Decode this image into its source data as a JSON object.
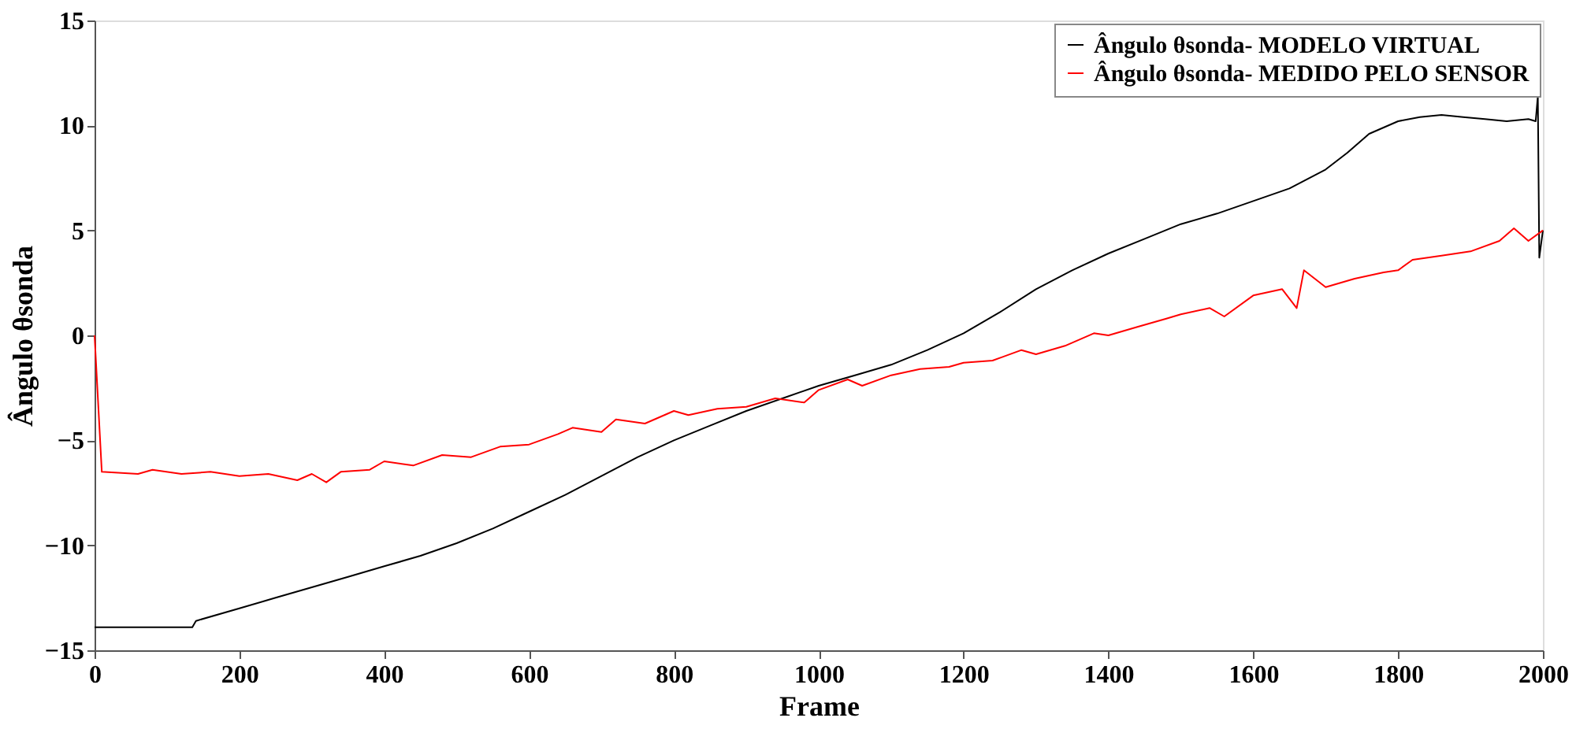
{
  "chart_data": {
    "type": "line",
    "xlabel": "Frame",
    "ylabel": "Ângulo θsonda",
    "xlim": [
      0,
      2000
    ],
    "ylim": [
      -15,
      15
    ],
    "xticks": [
      0,
      200,
      400,
      600,
      800,
      1000,
      1200,
      1400,
      1600,
      1800,
      2000
    ],
    "yticks": [
      -15,
      -10,
      -5,
      0,
      5,
      10,
      15
    ],
    "grid": false,
    "legend": "top right",
    "line_style": "solid",
    "marker": "none",
    "series": [
      {
        "name": "Ângulo θsonda- MODELO VIRTUAL",
        "color": "#000000",
        "x": [
          0,
          50,
          100,
          135,
          140,
          200,
          250,
          300,
          350,
          400,
          450,
          500,
          550,
          600,
          650,
          700,
          750,
          800,
          850,
          900,
          950,
          1000,
          1050,
          1100,
          1150,
          1200,
          1250,
          1300,
          1350,
          1400,
          1450,
          1500,
          1550,
          1600,
          1650,
          1700,
          1730,
          1760,
          1800,
          1830,
          1860,
          1890,
          1920,
          1950,
          1980,
          1990,
          1993,
          1995,
          2000
        ],
        "values": [
          -13.9,
          -13.9,
          -13.9,
          -13.9,
          -13.6,
          -13.0,
          -12.5,
          -12.0,
          -11.5,
          -11.0,
          -10.5,
          -9.9,
          -9.2,
          -8.4,
          -7.6,
          -6.7,
          -5.8,
          -5.0,
          -4.3,
          -3.6,
          -3.0,
          -2.4,
          -1.9,
          -1.4,
          -0.7,
          0.1,
          1.1,
          2.2,
          3.1,
          3.9,
          4.6,
          5.3,
          5.8,
          6.4,
          7.0,
          7.9,
          8.7,
          9.6,
          10.2,
          10.4,
          10.5,
          10.4,
          10.3,
          10.2,
          10.3,
          10.2,
          11.4,
          3.7,
          5.0
        ]
      },
      {
        "name": "Ângulo θsonda- MEDIDO PELO SENSOR",
        "color": "#ff0000",
        "x": [
          0,
          10,
          60,
          80,
          120,
          160,
          200,
          240,
          280,
          300,
          320,
          340,
          380,
          400,
          440,
          480,
          520,
          560,
          600,
          640,
          660,
          700,
          720,
          760,
          800,
          820,
          860,
          900,
          940,
          980,
          1000,
          1040,
          1060,
          1100,
          1140,
          1180,
          1200,
          1240,
          1280,
          1300,
          1340,
          1380,
          1400,
          1440,
          1480,
          1500,
          1540,
          1560,
          1600,
          1640,
          1660,
          1670,
          1700,
          1740,
          1780,
          1800,
          1820,
          1860,
          1900,
          1940,
          1960,
          1980,
          2000
        ],
        "values": [
          0,
          -6.5,
          -6.6,
          -6.4,
          -6.6,
          -6.5,
          -6.7,
          -6.6,
          -6.9,
          -6.6,
          -7.0,
          -6.5,
          -6.4,
          -6.0,
          -6.2,
          -5.7,
          -5.8,
          -5.3,
          -5.2,
          -4.7,
          -4.4,
          -4.6,
          -4.0,
          -4.2,
          -3.6,
          -3.8,
          -3.5,
          -3.4,
          -3.0,
          -3.2,
          -2.6,
          -2.1,
          -2.4,
          -1.9,
          -1.6,
          -1.5,
          -1.3,
          -1.2,
          -0.7,
          -0.9,
          -0.5,
          0.1,
          0.0,
          0.4,
          0.8,
          1.0,
          1.3,
          0.9,
          1.9,
          2.2,
          1.3,
          3.1,
          2.3,
          2.7,
          3.0,
          3.1,
          3.6,
          3.8,
          4.0,
          4.5,
          5.1,
          4.5,
          5.0
        ]
      }
    ]
  }
}
